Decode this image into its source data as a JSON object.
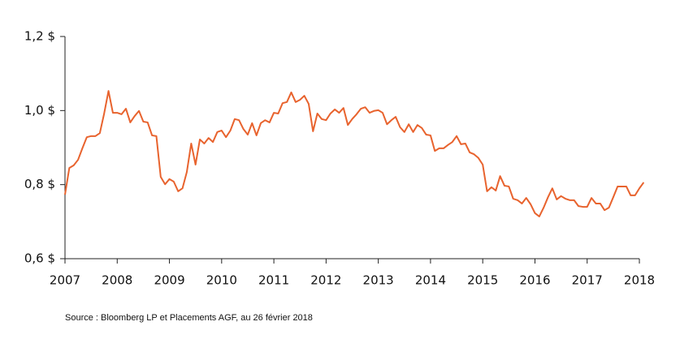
{
  "chart_data": {
    "type": "line",
    "source": "Source : Bloomberg LP et Placements AGF, au 26 février 2018",
    "x": [
      2007,
      2007.083,
      2007.167,
      2007.25,
      2007.333,
      2007.417,
      2007.5,
      2007.583,
      2007.667,
      2007.75,
      2007.833,
      2007.917,
      2008,
      2008.083,
      2008.167,
      2008.25,
      2008.333,
      2008.417,
      2008.5,
      2008.583,
      2008.667,
      2008.75,
      2008.833,
      2008.917,
      2009,
      2009.083,
      2009.167,
      2009.25,
      2009.333,
      2009.417,
      2009.5,
      2009.583,
      2009.667,
      2009.75,
      2009.833,
      2009.917,
      2010,
      2010.083,
      2010.167,
      2010.25,
      2010.333,
      2010.417,
      2010.5,
      2010.583,
      2010.667,
      2010.75,
      2010.833,
      2010.917,
      2011,
      2011.083,
      2011.167,
      2011.25,
      2011.333,
      2011.417,
      2011.5,
      2011.583,
      2011.667,
      2011.75,
      2011.833,
      2011.917,
      2012,
      2012.083,
      2012.167,
      2012.25,
      2012.333,
      2012.417,
      2012.5,
      2012.583,
      2012.667,
      2012.75,
      2012.833,
      2012.917,
      2013,
      2013.083,
      2013.167,
      2013.25,
      2013.333,
      2013.417,
      2013.5,
      2013.583,
      2013.667,
      2013.75,
      2013.833,
      2013.917,
      2014,
      2014.083,
      2014.167,
      2014.25,
      2014.333,
      2014.417,
      2014.5,
      2014.583,
      2014.667,
      2014.75,
      2014.833,
      2014.917,
      2015,
      2015.083,
      2015.167,
      2015.25,
      2015.333,
      2015.417,
      2015.5,
      2015.583,
      2015.667,
      2015.75,
      2015.833,
      2015.917,
      2016,
      2016.083,
      2016.167,
      2016.25,
      2016.333,
      2016.417,
      2016.5,
      2016.583,
      2016.667,
      2016.75,
      2016.833,
      2016.917,
      2017,
      2017.083,
      2017.167,
      2017.25,
      2017.333,
      2017.417,
      2017.5,
      2017.583,
      2017.667,
      2017.75,
      2017.833,
      2017.917,
      2018,
      2018.083
    ],
    "values": [
      0.773,
      0.845,
      0.852,
      0.867,
      0.898,
      0.928,
      0.931,
      0.931,
      0.939,
      0.992,
      1.053,
      0.994,
      0.994,
      0.99,
      1.005,
      0.968,
      0.985,
      0.999,
      0.97,
      0.968,
      0.933,
      0.931,
      0.821,
      0.801,
      0.815,
      0.808,
      0.782,
      0.79,
      0.834,
      0.911,
      0.854,
      0.922,
      0.911,
      0.926,
      0.915,
      0.942,
      0.946,
      0.928,
      0.946,
      0.977,
      0.974,
      0.95,
      0.935,
      0.966,
      0.933,
      0.966,
      0.974,
      0.968,
      0.994,
      0.992,
      1.02,
      1.023,
      1.049,
      1.023,
      1.029,
      1.04,
      1.018,
      0.944,
      0.992,
      0.977,
      0.974,
      0.992,
      1.003,
      0.994,
      1.007,
      0.961,
      0.977,
      0.99,
      1.005,
      1.009,
      0.994,
      0.999,
      1.001,
      0.994,
      0.963,
      0.974,
      0.983,
      0.955,
      0.942,
      0.963,
      0.942,
      0.961,
      0.953,
      0.935,
      0.933,
      0.891,
      0.898,
      0.898,
      0.907,
      0.915,
      0.931,
      0.909,
      0.911,
      0.887,
      0.882,
      0.872,
      0.854,
      0.782,
      0.793,
      0.784,
      0.823,
      0.797,
      0.795,
      0.762,
      0.758,
      0.749,
      0.764,
      0.747,
      0.723,
      0.714,
      0.738,
      0.766,
      0.79,
      0.76,
      0.769,
      0.762,
      0.758,
      0.758,
      0.742,
      0.74,
      0.74,
      0.764,
      0.749,
      0.749,
      0.731,
      0.738,
      0.766,
      0.795,
      0.795,
      0.795,
      0.771,
      0.771,
      0.79,
      0.806
    ],
    "color": "#e8632e",
    "xlim": [
      2007,
      2018
    ],
    "xticks": [
      2007,
      2008,
      2009,
      2010,
      2011,
      2012,
      2013,
      2014,
      2015,
      2016,
      2017,
      2018
    ],
    "ylim": [
      0.6,
      1.2
    ],
    "yticks": [
      {
        "value": 0.6,
        "label": "0,6 $"
      },
      {
        "value": 0.8,
        "label": "0,8 $"
      },
      {
        "value": 1.0,
        "label": "1,0 $"
      },
      {
        "value": 1.2,
        "label": "1,2 $"
      }
    ],
    "grid": false
  }
}
